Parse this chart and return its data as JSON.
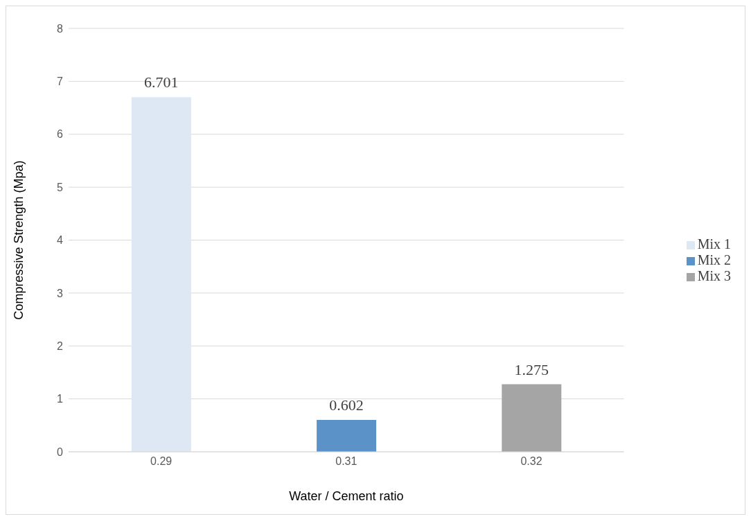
{
  "chart_data": {
    "type": "bar",
    "xlabel": "Water / Cement ratio",
    "ylabel": "Compressive Strength   (Mpa)",
    "categories": [
      "0.29",
      "0.31",
      "0.32"
    ],
    "series": [
      {
        "name": "Mix 1",
        "color": "#dee8f4",
        "values": [
          6.701,
          null,
          null
        ]
      },
      {
        "name": "Mix 2",
        "color": "#5b93c8",
        "values": [
          null,
          0.602,
          null
        ]
      },
      {
        "name": "Mix 3",
        "color": "#a5a5a5",
        "values": [
          null,
          null,
          1.275
        ]
      }
    ],
    "ylim": [
      0,
      8
    ],
    "yticks": [
      0,
      1,
      2,
      3,
      4,
      5,
      6,
      7,
      8
    ],
    "grid": "y",
    "legend": "right",
    "data_labels": true
  }
}
